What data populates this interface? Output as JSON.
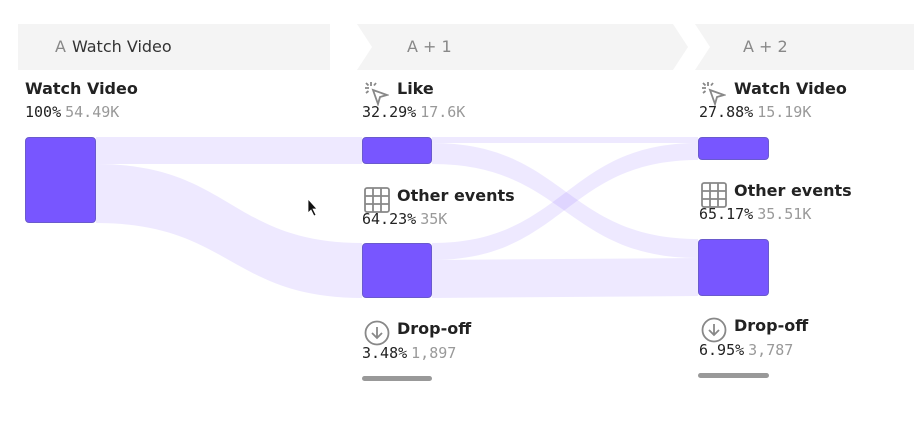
{
  "headers": [
    {
      "key": "A",
      "label": "Watch Video"
    },
    {
      "key": "A + 1",
      "label": ""
    },
    {
      "key": "A + 2",
      "label": ""
    }
  ],
  "columns": [
    {
      "nodes": [
        {
          "name": "Watch Video",
          "pct": "100%",
          "count": "54.49K",
          "icon": "none"
        }
      ]
    },
    {
      "nodes": [
        {
          "name": "Like",
          "pct": "32.29%",
          "count": "17.6K",
          "icon": "click-icon"
        },
        {
          "name": "Other events",
          "pct": "64.23%",
          "count": "35K",
          "icon": "grid-icon"
        },
        {
          "name": "Drop-off",
          "pct": "3.48%",
          "count": "1,897",
          "icon": "drop-off-icon"
        }
      ]
    },
    {
      "nodes": [
        {
          "name": "Watch Video",
          "pct": "27.88%",
          "count": "15.19K",
          "icon": "click-icon"
        },
        {
          "name": "Other events",
          "pct": "65.17%",
          "count": "35.51K",
          "icon": "grid-icon"
        },
        {
          "name": "Drop-off",
          "pct": "6.95%",
          "count": "3,787",
          "icon": "drop-off-icon"
        }
      ]
    }
  ],
  "colors": {
    "node": "#7856ff",
    "flow": "#ebe8fc",
    "dropoff": "#999999"
  }
}
